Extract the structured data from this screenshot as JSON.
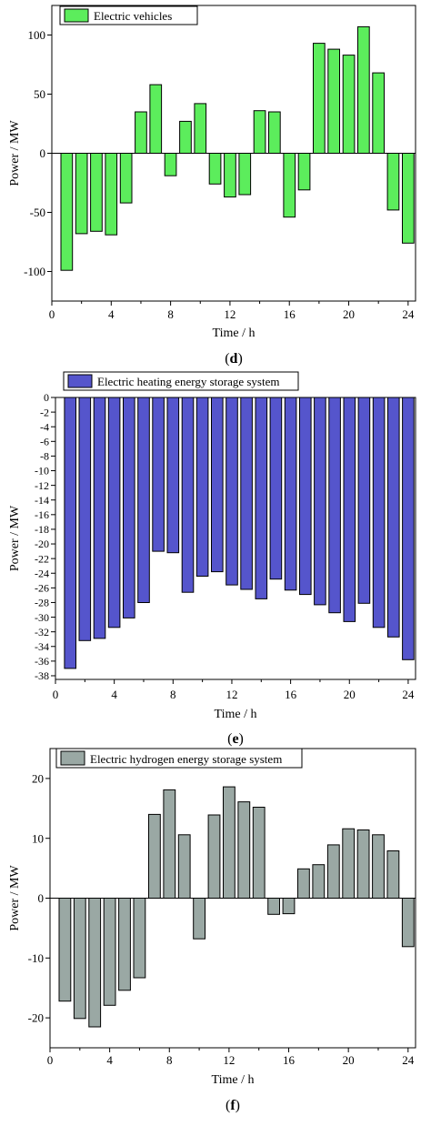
{
  "panels": [
    {
      "caption": "d",
      "legend": "Electric vehicles"
    },
    {
      "caption": "e",
      "legend": "Electric heating energy storage system"
    },
    {
      "caption": "f",
      "legend": "Electric hydrogen energy storage system"
    }
  ],
  "chart_data": [
    {
      "type": "bar",
      "title": "",
      "xlabel": "Time / h",
      "ylabel": "Power / MW",
      "x": [
        1,
        2,
        3,
        4,
        5,
        6,
        7,
        8,
        9,
        10,
        11,
        12,
        13,
        14,
        15,
        16,
        17,
        18,
        19,
        20,
        21,
        22,
        23,
        24
      ],
      "xlim": [
        0,
        24.5
      ],
      "xticks": [
        0,
        4,
        8,
        12,
        16,
        20,
        24
      ],
      "ylim": [
        -125,
        125
      ],
      "yticks": [
        -100,
        -50,
        0,
        50,
        100
      ],
      "legend_position": "top-left",
      "grid": false,
      "series": [
        {
          "name": "Electric vehicles",
          "color": "#5ced5c",
          "values": [
            -99,
            -68,
            -66,
            -69,
            -42,
            35,
            58,
            -19,
            27,
            42,
            -26,
            -37,
            -35,
            36,
            35,
            -54,
            -31,
            93,
            88,
            83,
            107,
            68,
            -48,
            -76
          ]
        }
      ]
    },
    {
      "type": "bar",
      "title": "",
      "xlabel": "Time / h",
      "ylabel": "Power / MW",
      "x": [
        1,
        2,
        3,
        4,
        5,
        6,
        7,
        8,
        9,
        10,
        11,
        12,
        13,
        14,
        15,
        16,
        17,
        18,
        19,
        20,
        21,
        22,
        23,
        24
      ],
      "xlim": [
        0,
        24.5
      ],
      "xticks": [
        0,
        4,
        8,
        12,
        16,
        20,
        24
      ],
      "ylim": [
        -38.5,
        0
      ],
      "yticks": [
        0,
        -2,
        -4,
        -6,
        -8,
        -10,
        -12,
        -14,
        -16,
        -18,
        -20,
        -22,
        -24,
        -26,
        -28,
        -30,
        -32,
        -34,
        -36,
        -38
      ],
      "legend_position": "top-left",
      "grid": false,
      "series": [
        {
          "name": "Electric heating energy storage system",
          "color": "#5555cc",
          "values": [
            -37.0,
            -33.2,
            -32.9,
            -31.4,
            -30.1,
            -28.0,
            -21.0,
            -21.2,
            -26.6,
            -24.4,
            -23.8,
            -25.6,
            -26.2,
            -27.5,
            -24.8,
            -26.3,
            -26.9,
            -28.3,
            -29.4,
            -30.6,
            -28.1,
            -31.4,
            -32.7,
            -35.8
          ]
        }
      ]
    },
    {
      "type": "bar",
      "title": "",
      "xlabel": "Time / h",
      "ylabel": "Power / MW",
      "x": [
        1,
        2,
        3,
        4,
        5,
        6,
        7,
        8,
        9,
        10,
        11,
        12,
        13,
        14,
        15,
        16,
        17,
        18,
        19,
        20,
        21,
        22,
        23,
        24
      ],
      "xlim": [
        0,
        24.5
      ],
      "xticks": [
        0,
        4,
        8,
        12,
        16,
        20,
        24
      ],
      "ylim": [
        -25,
        25
      ],
      "yticks": [
        -20,
        -10,
        0,
        10,
        20
      ],
      "legend_position": "top-left",
      "grid": false,
      "series": [
        {
          "name": "Electric hydrogen energy storage system",
          "color": "#9aa8a4",
          "values": [
            -17.2,
            -20.1,
            -21.5,
            -17.9,
            -15.4,
            -13.3,
            14.0,
            18.1,
            10.6,
            -6.8,
            13.9,
            18.6,
            16.1,
            15.2,
            -2.7,
            -2.6,
            4.9,
            5.6,
            8.9,
            11.6,
            11.4,
            10.6,
            7.9,
            -8.1
          ]
        }
      ]
    }
  ]
}
